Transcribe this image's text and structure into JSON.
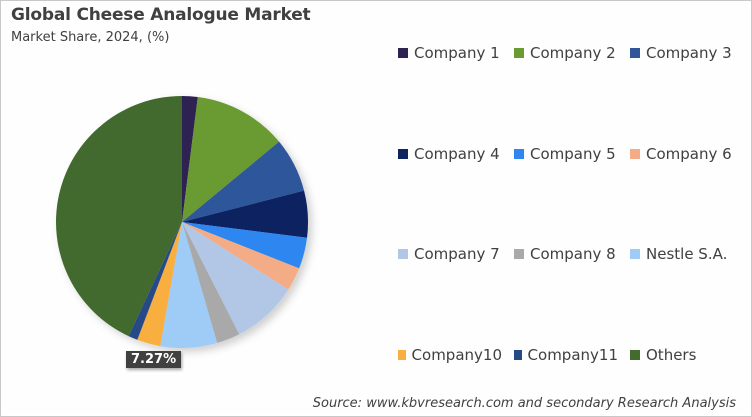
{
  "title": "Global Cheese Analogue Market",
  "subtitle": "Market Share, 2024, (%)",
  "source": "Source: www.kbvresearch.com and secondary Research Analysis",
  "data_label": "7.27%",
  "chart_data": {
    "type": "pie",
    "title": "Global Cheese Analogue Market",
    "subtitle": "Market Share, 2024, (%)",
    "legend_position": "right",
    "start_angle_deg": 0,
    "direction": "clockwise",
    "categories": [
      "Company 1",
      "Company 2",
      "Company 3",
      "Company 4",
      "Company 5",
      "Company 6",
      "Company 7",
      "Company 8",
      "Nestle S.A.",
      "Company10",
      "Company11",
      "Others"
    ],
    "values": [
      2.0,
      12.0,
      7.0,
      6.0,
      4.0,
      3.0,
      8.5,
      3.0,
      7.27,
      3.0,
      1.2,
      43.03
    ],
    "colors": [
      "#2e2352",
      "#6a9a32",
      "#2f569a",
      "#0d2461",
      "#2f86f0",
      "#f4ac86",
      "#b2c6e6",
      "#a9a9a9",
      "#9fcbf7",
      "#f9ae41",
      "#264a87",
      "#436b2d"
    ],
    "data_labels": [
      {
        "category": "Nestle S.A.",
        "text": "7.27%"
      }
    ]
  },
  "legend": {
    "rows": [
      [
        {
          "label": "Company 1",
          "color": "#2e2352"
        },
        {
          "label": "Company 2",
          "color": "#6a9a32"
        },
        {
          "label": "Company 3",
          "color": "#2f569a"
        }
      ],
      [
        {
          "label": "Company 4",
          "color": "#0d2461"
        },
        {
          "label": "Company 5",
          "color": "#2f86f0"
        },
        {
          "label": "Company 6",
          "color": "#f4ac86"
        }
      ],
      [
        {
          "label": "Company 7",
          "color": "#b2c6e6"
        },
        {
          "label": "Company 8",
          "color": "#a9a9a9"
        },
        {
          "label": "Nestle S.A.",
          "color": "#9fcbf7"
        }
      ],
      [
        {
          "label": "Company10",
          "color": "#f9ae41"
        },
        {
          "label": "Company11",
          "color": "#264a87"
        },
        {
          "label": "Others",
          "color": "#436b2d"
        }
      ]
    ]
  }
}
